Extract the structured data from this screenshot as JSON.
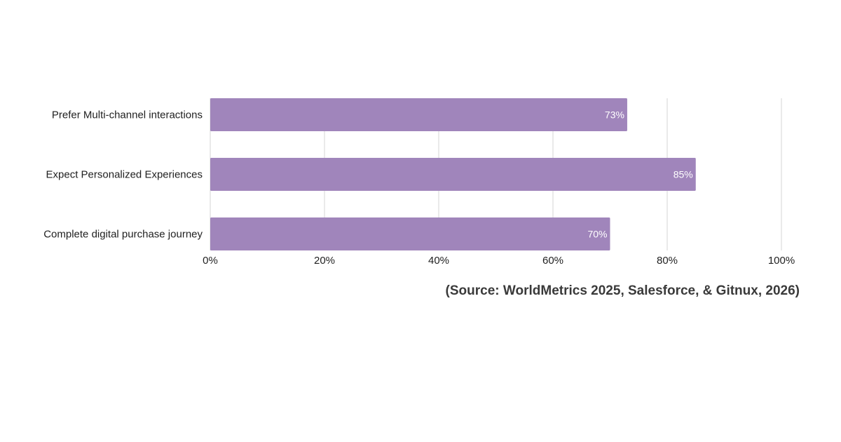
{
  "chart_data": {
    "type": "bar",
    "orientation": "horizontal",
    "categories": [
      "Prefer Multi-channel interactions",
      "Expect Personalized Experiences",
      "Complete digital purchase journey"
    ],
    "values": [
      73,
      85,
      70
    ],
    "value_labels": [
      "73%",
      "85%",
      "70%"
    ],
    "xlim": [
      0,
      100
    ],
    "x_ticks": [
      0,
      20,
      40,
      60,
      80,
      100
    ],
    "x_tick_labels": [
      "0%",
      "20%",
      "40%",
      "60%",
      "80%",
      "100%"
    ],
    "grid": true,
    "bar_color": "#a085bb",
    "grid_color": "#dddddd",
    "title": "",
    "xlabel": "",
    "ylabel": ""
  },
  "source_note": "(Source: WorldMetrics 2025, Salesforce, & Gitnux, 2026)"
}
